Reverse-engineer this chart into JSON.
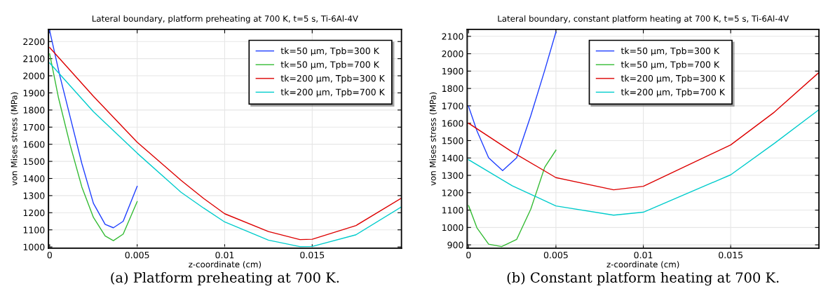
{
  "chart_data": [
    {
      "type": "line",
      "title": "Lateral boundary, platform preheating at 700 K, t=5 s, Ti-6Al-4V",
      "xlabel": "z-coordinate (cm)",
      "ylabel": "von Mises stress (MPa)",
      "xlim": [
        -7e-05,
        0.0201
      ],
      "ylim": [
        993,
        2271
      ],
      "xticks": [
        0,
        0.005,
        0.01,
        0.015
      ],
      "yticks": [
        1000,
        1100,
        1200,
        1300,
        1400,
        1500,
        1600,
        1700,
        1800,
        1900,
        2000,
        2100,
        2200
      ],
      "grid": true,
      "legend": "top right",
      "annotations": [
        "(a) Platform preheating at 700 K."
      ],
      "series": [
        {
          "name": "tk=50 µm, Tpb=300 K",
          "color": "#1f3fff",
          "x": [
            0,
            0.00057,
            0.00117,
            0.00184,
            0.0025,
            0.00317,
            0.00364,
            0.0042,
            0.005
          ],
          "values": [
            2264,
            2005,
            1760,
            1487,
            1255,
            1132,
            1112,
            1150,
            1354
          ]
        },
        {
          "name": "tk=50 µm, Tpb=700 K",
          "color": "#33bb33",
          "x": [
            0,
            0.00051,
            0.00117,
            0.00184,
            0.0025,
            0.00317,
            0.00364,
            0.0042,
            0.005
          ],
          "values": [
            2128,
            1869,
            1596,
            1350,
            1173,
            1064,
            1037,
            1075,
            1265
          ]
        },
        {
          "name": "tk=200 µm, Tpb=300 K",
          "color": "#dd0000",
          "x": [
            0,
            0.0025,
            0.005,
            0.0075,
            0.0088,
            0.01,
            0.0125,
            0.0143,
            0.015,
            0.0175,
            0.0201
          ],
          "values": [
            2165,
            1880,
            1612,
            1390,
            1283,
            1194,
            1090,
            1043,
            1045,
            1125,
            1285
          ]
        },
        {
          "name": "tk=200 µm, Tpb=700 K",
          "color": "#00cccc",
          "x": [
            0,
            0.0025,
            0.005,
            0.0075,
            0.0088,
            0.01,
            0.0125,
            0.0143,
            0.015,
            0.0175,
            0.0201
          ],
          "values": [
            2075,
            1790,
            1548,
            1320,
            1227,
            1146,
            1040,
            1002,
            1003,
            1071,
            1234
          ]
        }
      ]
    },
    {
      "type": "line",
      "title": "Lateral boundary, constant platform heating at 700 K, t=5 s, Ti-6Al-4V",
      "xlabel": "z-coordinate (cm)",
      "ylabel": "von Mises stress (MPa)",
      "xlim": [
        -8e-05,
        0.02005
      ],
      "ylim": [
        881,
        2140
      ],
      "xticks": [
        0,
        0.005,
        0.01,
        0.015
      ],
      "yticks": [
        900,
        1000,
        1100,
        1200,
        1300,
        1400,
        1500,
        1600,
        1700,
        1800,
        1900,
        2000,
        2100
      ],
      "grid": true,
      "legend": "top",
      "annotations": [
        "(b) Constant platform heating at 700 K."
      ],
      "series": [
        {
          "name": "tk=50 µm, Tpb=300 K",
          "color": "#1f3fff",
          "x": [
            0,
            0.00048,
            0.00115,
            0.00195,
            0.00275,
            0.00356,
            0.00436,
            0.005
          ],
          "values": [
            1697,
            1556,
            1401,
            1327,
            1401,
            1643,
            1905,
            2125
          ]
        },
        {
          "name": "tk=50 µm, Tpb=700 K",
          "color": "#33bb33",
          "x": [
            0,
            0.00048,
            0.00115,
            0.00189,
            0.00275,
            0.00356,
            0.00436,
            0.005
          ],
          "values": [
            1126,
            998,
            904,
            890,
            931,
            1105,
            1347,
            1445
          ]
        },
        {
          "name": "tk=200 µm, Tpb=300 K",
          "color": "#dd0000",
          "x": [
            0,
            0.0025,
            0.005,
            0.0083,
            0.01,
            0.015,
            0.0175,
            0.02005
          ],
          "values": [
            1600,
            1435,
            1287,
            1217,
            1237,
            1475,
            1664,
            1892
          ]
        },
        {
          "name": "tk=200 µm, Tpb=700 K",
          "color": "#00cccc",
          "x": [
            0,
            0.0025,
            0.005,
            0.0083,
            0.01,
            0.015,
            0.0175,
            0.02005
          ],
          "values": [
            1390,
            1240,
            1124,
            1071,
            1088,
            1303,
            1484,
            1678
          ]
        }
      ]
    }
  ]
}
